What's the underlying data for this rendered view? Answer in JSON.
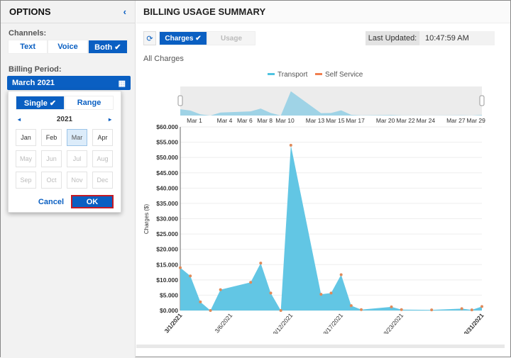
{
  "sidebar": {
    "title": "OPTIONS",
    "collapse_icon": "chevron-left-icon",
    "channels_label": "Channels:",
    "channels": [
      {
        "label": "Text",
        "selected": false
      },
      {
        "label": "Voice",
        "selected": false
      },
      {
        "label": "Both ✔",
        "selected": true
      }
    ],
    "billing_label": "Billing Period:",
    "billing_value": "March 2021",
    "calendar_icon": "calendar-icon",
    "picker": {
      "modes": [
        {
          "label": "Single ✔",
          "selected": true
        },
        {
          "label": "Range",
          "selected": false
        }
      ],
      "year": "2021",
      "prev": "◂",
      "next": "▸",
      "months": [
        {
          "label": "Jan",
          "state": "enabled"
        },
        {
          "label": "Feb",
          "state": "enabled"
        },
        {
          "label": "Mar",
          "state": "selected"
        },
        {
          "label": "Apr",
          "state": "enabled"
        },
        {
          "label": "May",
          "state": "disabled"
        },
        {
          "label": "Jun",
          "state": "disabled"
        },
        {
          "label": "Jul",
          "state": "disabled"
        },
        {
          "label": "Aug",
          "state": "disabled"
        },
        {
          "label": "Sep",
          "state": "disabled"
        },
        {
          "label": "Oct",
          "state": "disabled"
        },
        {
          "label": "Nov",
          "state": "disabled"
        },
        {
          "label": "Dec",
          "state": "disabled"
        }
      ],
      "cancel": "Cancel",
      "ok": "OK"
    }
  },
  "main": {
    "title": "BILLING USAGE SUMMARY",
    "refresh_icon": "refresh-icon",
    "tabs": [
      {
        "label": "Charges ✔",
        "selected": true
      },
      {
        "label": "Usage",
        "selected": false
      }
    ],
    "last_updated_label": "Last Updated:",
    "last_updated_value": "10:47:59 AM",
    "section": "All Charges"
  },
  "chart_data": {
    "type": "area",
    "legend": [
      {
        "name": "Transport",
        "color": "#4fc3e0"
      },
      {
        "name": "Self Service",
        "color": "#f07f4f"
      }
    ],
    "legend_placement": "top",
    "ylabel": "Charges ($)",
    "ylim": [
      0,
      60000
    ],
    "yticks": [
      "$0.000",
      "$5.000",
      "$10.000",
      "$15.000",
      "$20.000",
      "$25.000",
      "$30.000",
      "$35.000",
      "$40.000",
      "$45.000",
      "$50.000",
      "$55.000",
      "$60.000"
    ],
    "xticks": [
      "3/1/2021",
      "3/6/2021",
      "3/12/2021",
      "3/17/2021",
      "3/23/2021",
      "3/31/2021"
    ],
    "navigator_ticks": [
      "Mar 1",
      "Mar 4",
      "Mar 6",
      "Mar 8",
      "Mar 10",
      "Mar 13",
      "Mar 15",
      "Mar 17",
      "Mar 20",
      "Mar 22",
      "Mar 24",
      "Mar 27",
      "Mar 29"
    ],
    "grid": true,
    "points": [
      {
        "x": "3/1/2021",
        "y": 14000
      },
      {
        "x": "3/2/2021",
        "y": 11300
      },
      {
        "x": "3/3/2021",
        "y": 2800
      },
      {
        "x": "3/4/2021",
        "y": 0
      },
      {
        "x": "3/5/2021",
        "y": 6800
      },
      {
        "x": "3/8/2021",
        "y": 9200
      },
      {
        "x": "3/9/2021",
        "y": 15500
      },
      {
        "x": "3/10/2021",
        "y": 5700
      },
      {
        "x": "3/11/2021",
        "y": 0
      },
      {
        "x": "3/12/2021",
        "y": 54000
      },
      {
        "x": "3/15/2021",
        "y": 5300
      },
      {
        "x": "3/16/2021",
        "y": 5700
      },
      {
        "x": "3/17/2021",
        "y": 11700
      },
      {
        "x": "3/18/2021",
        "y": 1600
      },
      {
        "x": "3/19/2021",
        "y": 300
      },
      {
        "x": "3/22/2021",
        "y": 1200
      },
      {
        "x": "3/23/2021",
        "y": 300
      },
      {
        "x": "3/26/2021",
        "y": 200
      },
      {
        "x": "3/29/2021",
        "y": 600
      },
      {
        "x": "3/30/2021",
        "y": 200
      },
      {
        "x": "3/31/2021",
        "y": 1300
      }
    ]
  }
}
